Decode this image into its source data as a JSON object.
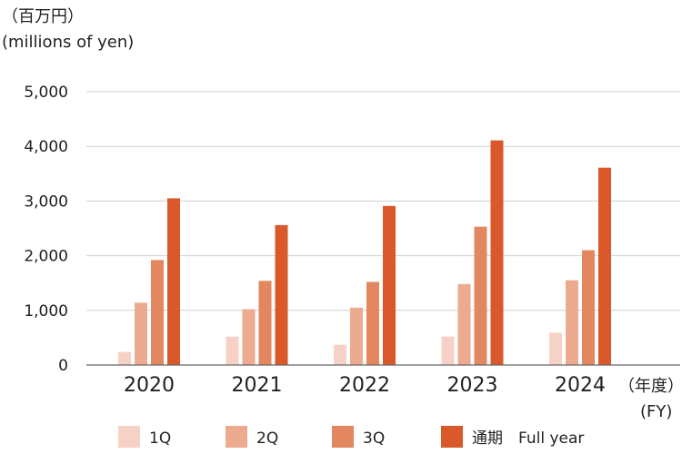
{
  "chart_data": {
    "type": "bar",
    "unit_label_line1": "（百万円）",
    "unit_label_line2": "(millions of yen)",
    "x_unit_line1": "（年度）",
    "x_unit_line2": "(FY)",
    "categories": [
      "2020",
      "2021",
      "2022",
      "2023",
      "2024"
    ],
    "series": [
      {
        "name": "1Q",
        "color": "#f6d2c6",
        "values": [
          240,
          520,
          370,
          520,
          590
        ]
      },
      {
        "name": "2Q",
        "color": "#ecaa8f",
        "values": [
          1140,
          1020,
          1050,
          1480,
          1550
        ]
      },
      {
        "name": "3Q",
        "color": "#e2875f",
        "values": [
          1920,
          1540,
          1520,
          2530,
          2100
        ]
      },
      {
        "name": "通期　Full year",
        "color": "#d9592a",
        "values": [
          3050,
          2560,
          2910,
          4110,
          3610
        ]
      }
    ],
    "ylim": [
      0,
      5000
    ],
    "yticks": [
      "0",
      "1,000",
      "2,000",
      "3,000",
      "4,000",
      "5,000"
    ],
    "grid": true,
    "legend_position": "bottom"
  }
}
